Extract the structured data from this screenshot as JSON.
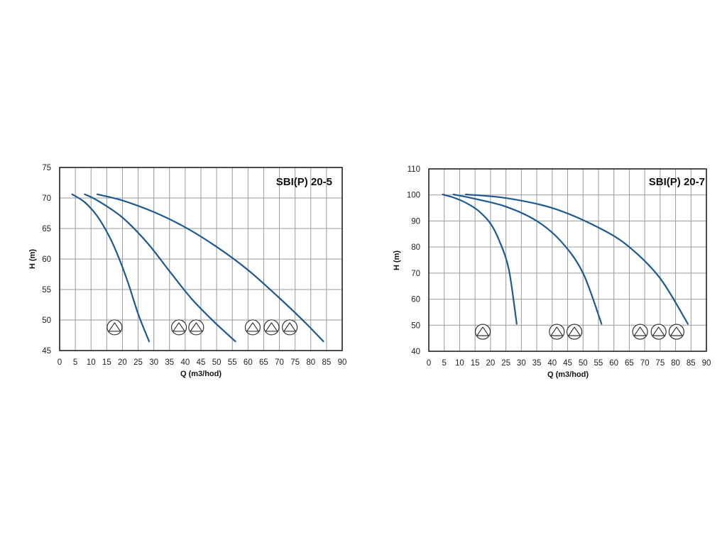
{
  "chart_data": [
    {
      "type": "line",
      "title": "SBI(P) 20-5",
      "xlabel": "Q (m3/hod)",
      "ylabel": "H (m)",
      "xlim": [
        0,
        90
      ],
      "ylim": [
        45,
        75
      ],
      "x_ticks": [
        0,
        5,
        10,
        15,
        20,
        25,
        30,
        35,
        40,
        45,
        50,
        55,
        60,
        65,
        70,
        75,
        80,
        85,
        90
      ],
      "y_ticks": [
        45,
        50,
        55,
        60,
        65,
        70,
        75
      ],
      "grid": true,
      "series": [
        {
          "points": [
            [
              4,
              70.6
            ],
            [
              8,
              69.3
            ],
            [
              12,
              67.0
            ],
            [
              16,
              63.5
            ],
            [
              19,
              60.0
            ],
            [
              22,
              55.8
            ],
            [
              25,
              51.0
            ],
            [
              28.5,
              46.5
            ]
          ]
        },
        {
          "points": [
            [
              8,
              70.6
            ],
            [
              12,
              69.6
            ],
            [
              20,
              66.8
            ],
            [
              28,
              62.6
            ],
            [
              35,
              58.0
            ],
            [
              42,
              53.5
            ],
            [
              49,
              49.8
            ],
            [
              56,
              46.5
            ]
          ]
        },
        {
          "points": [
            [
              12,
              70.6
            ],
            [
              20,
              69.6
            ],
            [
              30,
              67.7
            ],
            [
              40,
              65.2
            ],
            [
              50,
              62.0
            ],
            [
              60,
              58.2
            ],
            [
              70,
              53.6
            ],
            [
              78,
              49.7
            ],
            [
              84,
              46.5
            ]
          ]
        }
      ],
      "markers": [
        {
          "icon": "circle-triangle-icon",
          "x": 17.5,
          "y": 48.8
        },
        {
          "icon": "circle-triangle-icon",
          "x": 38,
          "y": 48.8
        },
        {
          "icon": "circle-triangle-icon",
          "x": 43.5,
          "y": 48.8
        },
        {
          "icon": "circle-triangle-icon",
          "x": 61.5,
          "y": 48.8
        },
        {
          "icon": "circle-triangle-icon",
          "x": 67.5,
          "y": 48.8
        },
        {
          "icon": "circle-triangle-icon",
          "x": 73.3,
          "y": 48.8
        }
      ]
    },
    {
      "type": "line",
      "title": "SBI(P) 20-7",
      "xlabel": "Q (m3/hod)",
      "ylabel": "H (m)",
      "xlim": [
        0,
        90
      ],
      "ylim": [
        40,
        110
      ],
      "x_ticks": [
        0,
        5,
        10,
        15,
        20,
        25,
        30,
        35,
        40,
        45,
        50,
        55,
        60,
        65,
        70,
        75,
        80,
        85,
        90
      ],
      "y_ticks": [
        40,
        50,
        60,
        70,
        80,
        90,
        100,
        110
      ],
      "grid": true,
      "series": [
        {
          "points": [
            [
              4.5,
              100.2
            ],
            [
              8,
              99.0
            ],
            [
              12,
              97.0
            ],
            [
              16,
              94.0
            ],
            [
              20,
              89.0
            ],
            [
              23,
              82.0
            ],
            [
              26,
              71.0
            ],
            [
              28.5,
              50.5
            ]
          ]
        },
        {
          "points": [
            [
              8,
              100.2
            ],
            [
              15,
              98.5
            ],
            [
              25,
              95.5
            ],
            [
              35,
              90.0
            ],
            [
              43,
              82.0
            ],
            [
              50,
              70.0
            ],
            [
              56,
              50.5
            ]
          ]
        },
        {
          "points": [
            [
              12,
              100.2
            ],
            [
              25,
              98.8
            ],
            [
              40,
              95.0
            ],
            [
              55,
              87.5
            ],
            [
              65,
              80.0
            ],
            [
              75,
              68.0
            ],
            [
              84,
              50.5
            ]
          ]
        }
      ],
      "markers": [
        {
          "icon": "circle-triangle-icon",
          "x": 17.5,
          "y": 47.5
        },
        {
          "icon": "circle-triangle-icon",
          "x": 41.5,
          "y": 47.5
        },
        {
          "icon": "circle-triangle-icon",
          "x": 47.2,
          "y": 47.5
        },
        {
          "icon": "circle-triangle-icon",
          "x": 68.5,
          "y": 47.5
        },
        {
          "icon": "circle-triangle-icon",
          "x": 74.5,
          "y": 47.5
        },
        {
          "icon": "circle-triangle-icon",
          "x": 80.3,
          "y": 47.5
        }
      ]
    }
  ],
  "colors": {
    "curve": "#1d5a91",
    "grid": "#9a9a9a",
    "frame": "#222222"
  }
}
